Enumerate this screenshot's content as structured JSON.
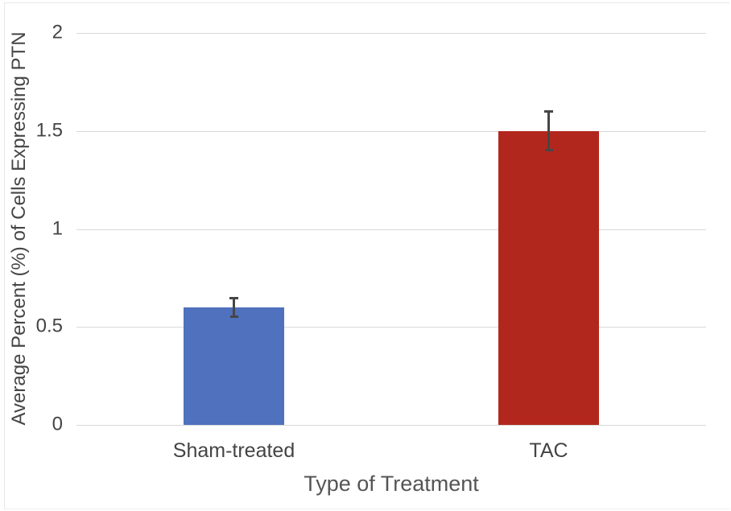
{
  "chart_data": {
    "type": "bar",
    "title": "",
    "categories": [
      "Sham-treated",
      "TAC"
    ],
    "values": [
      0.6,
      1.5
    ],
    "errors": [
      0.05,
      0.1
    ],
    "bar_colors": [
      "#4f71be",
      "#b2271d"
    ],
    "xlabel": "Type of Treatment",
    "ylabel": "Average Percent (%) of Cells Expressing PTN",
    "ylim": [
      0,
      2
    ],
    "yticks": [
      {
        "value": 0,
        "label": "0"
      },
      {
        "value": 0.5,
        "label": "0.5"
      },
      {
        "value": 1,
        "label": "1"
      },
      {
        "value": 1.5,
        "label": "1.5"
      },
      {
        "value": 2,
        "label": "2"
      }
    ],
    "legend": null,
    "grid": true,
    "gridline_color": "#d9d9d9",
    "error_bar_color": "#464646",
    "text_color": "#444444",
    "background_color": "#ffffff"
  }
}
